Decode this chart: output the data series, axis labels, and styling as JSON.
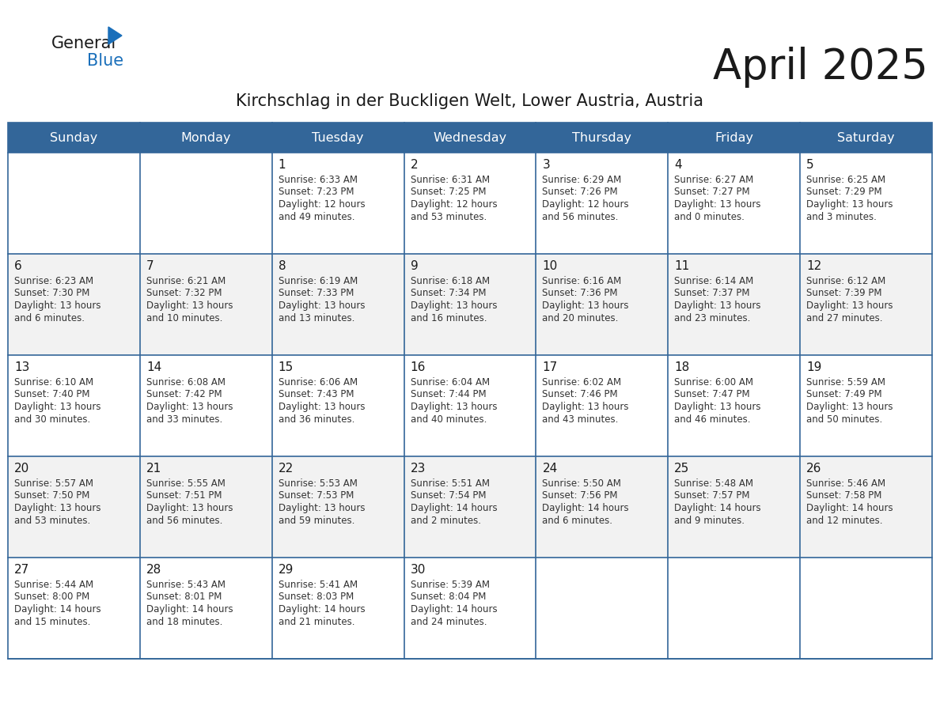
{
  "title": "April 2025",
  "subtitle": "Kirchschlag in der Buckligen Welt, Lower Austria, Austria",
  "days_of_week": [
    "Sunday",
    "Monday",
    "Tuesday",
    "Wednesday",
    "Thursday",
    "Friday",
    "Saturday"
  ],
  "header_bg": "#336699",
  "header_text": "#ffffff",
  "row_bg_odd": "#f2f2f2",
  "row_bg_even": "#ffffff",
  "cell_border": "#336699",
  "title_color": "#1a1a1a",
  "subtitle_color": "#1a1a1a",
  "day_number_color": "#1a1a1a",
  "cell_text_color": "#333333",
  "logo_general_color": "#1a1a1a",
  "logo_blue_color": "#1a6fba",
  "weeks": [
    [
      {
        "day": null,
        "info": null
      },
      {
        "day": null,
        "info": null
      },
      {
        "day": 1,
        "info": "Sunrise: 6:33 AM\nSunset: 7:23 PM\nDaylight: 12 hours\nand 49 minutes."
      },
      {
        "day": 2,
        "info": "Sunrise: 6:31 AM\nSunset: 7:25 PM\nDaylight: 12 hours\nand 53 minutes."
      },
      {
        "day": 3,
        "info": "Sunrise: 6:29 AM\nSunset: 7:26 PM\nDaylight: 12 hours\nand 56 minutes."
      },
      {
        "day": 4,
        "info": "Sunrise: 6:27 AM\nSunset: 7:27 PM\nDaylight: 13 hours\nand 0 minutes."
      },
      {
        "day": 5,
        "info": "Sunrise: 6:25 AM\nSunset: 7:29 PM\nDaylight: 13 hours\nand 3 minutes."
      }
    ],
    [
      {
        "day": 6,
        "info": "Sunrise: 6:23 AM\nSunset: 7:30 PM\nDaylight: 13 hours\nand 6 minutes."
      },
      {
        "day": 7,
        "info": "Sunrise: 6:21 AM\nSunset: 7:32 PM\nDaylight: 13 hours\nand 10 minutes."
      },
      {
        "day": 8,
        "info": "Sunrise: 6:19 AM\nSunset: 7:33 PM\nDaylight: 13 hours\nand 13 minutes."
      },
      {
        "day": 9,
        "info": "Sunrise: 6:18 AM\nSunset: 7:34 PM\nDaylight: 13 hours\nand 16 minutes."
      },
      {
        "day": 10,
        "info": "Sunrise: 6:16 AM\nSunset: 7:36 PM\nDaylight: 13 hours\nand 20 minutes."
      },
      {
        "day": 11,
        "info": "Sunrise: 6:14 AM\nSunset: 7:37 PM\nDaylight: 13 hours\nand 23 minutes."
      },
      {
        "day": 12,
        "info": "Sunrise: 6:12 AM\nSunset: 7:39 PM\nDaylight: 13 hours\nand 27 minutes."
      }
    ],
    [
      {
        "day": 13,
        "info": "Sunrise: 6:10 AM\nSunset: 7:40 PM\nDaylight: 13 hours\nand 30 minutes."
      },
      {
        "day": 14,
        "info": "Sunrise: 6:08 AM\nSunset: 7:42 PM\nDaylight: 13 hours\nand 33 minutes."
      },
      {
        "day": 15,
        "info": "Sunrise: 6:06 AM\nSunset: 7:43 PM\nDaylight: 13 hours\nand 36 minutes."
      },
      {
        "day": 16,
        "info": "Sunrise: 6:04 AM\nSunset: 7:44 PM\nDaylight: 13 hours\nand 40 minutes."
      },
      {
        "day": 17,
        "info": "Sunrise: 6:02 AM\nSunset: 7:46 PM\nDaylight: 13 hours\nand 43 minutes."
      },
      {
        "day": 18,
        "info": "Sunrise: 6:00 AM\nSunset: 7:47 PM\nDaylight: 13 hours\nand 46 minutes."
      },
      {
        "day": 19,
        "info": "Sunrise: 5:59 AM\nSunset: 7:49 PM\nDaylight: 13 hours\nand 50 minutes."
      }
    ],
    [
      {
        "day": 20,
        "info": "Sunrise: 5:57 AM\nSunset: 7:50 PM\nDaylight: 13 hours\nand 53 minutes."
      },
      {
        "day": 21,
        "info": "Sunrise: 5:55 AM\nSunset: 7:51 PM\nDaylight: 13 hours\nand 56 minutes."
      },
      {
        "day": 22,
        "info": "Sunrise: 5:53 AM\nSunset: 7:53 PM\nDaylight: 13 hours\nand 59 minutes."
      },
      {
        "day": 23,
        "info": "Sunrise: 5:51 AM\nSunset: 7:54 PM\nDaylight: 14 hours\nand 2 minutes."
      },
      {
        "day": 24,
        "info": "Sunrise: 5:50 AM\nSunset: 7:56 PM\nDaylight: 14 hours\nand 6 minutes."
      },
      {
        "day": 25,
        "info": "Sunrise: 5:48 AM\nSunset: 7:57 PM\nDaylight: 14 hours\nand 9 minutes."
      },
      {
        "day": 26,
        "info": "Sunrise: 5:46 AM\nSunset: 7:58 PM\nDaylight: 14 hours\nand 12 minutes."
      }
    ],
    [
      {
        "day": 27,
        "info": "Sunrise: 5:44 AM\nSunset: 8:00 PM\nDaylight: 14 hours\nand 15 minutes."
      },
      {
        "day": 28,
        "info": "Sunrise: 5:43 AM\nSunset: 8:01 PM\nDaylight: 14 hours\nand 18 minutes."
      },
      {
        "day": 29,
        "info": "Sunrise: 5:41 AM\nSunset: 8:03 PM\nDaylight: 14 hours\nand 21 minutes."
      },
      {
        "day": 30,
        "info": "Sunrise: 5:39 AM\nSunset: 8:04 PM\nDaylight: 14 hours\nand 24 minutes."
      },
      {
        "day": null,
        "info": null
      },
      {
        "day": null,
        "info": null
      },
      {
        "day": null,
        "info": null
      }
    ]
  ],
  "fig_width": 11.88,
  "fig_height": 9.18,
  "dpi": 100
}
